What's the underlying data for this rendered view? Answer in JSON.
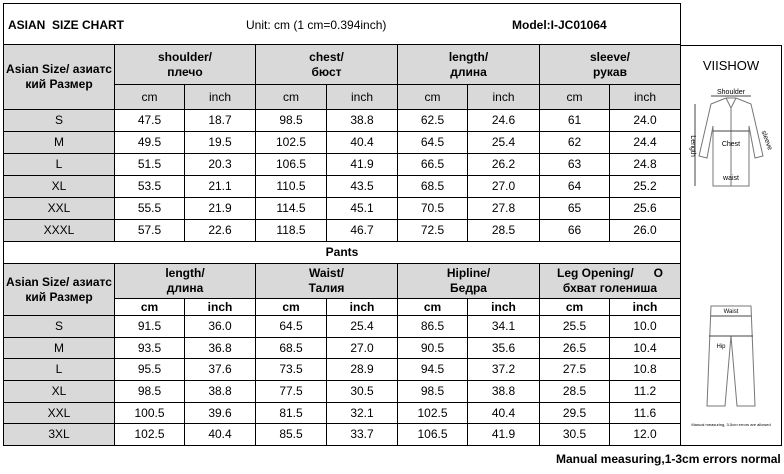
{
  "header": {
    "title": "ASIAN  SIZE CHART",
    "unit": "Unit: cm (1 cm=0.394inch)",
    "model": "Model:I-JC01064"
  },
  "brand": "VIISHOW",
  "tops": {
    "size_header": "Asian Size/ азиатский Размер",
    "columns": [
      {
        "en": "shoulder/",
        "ru": "плечо",
        "units": [
          "cm",
          "inch"
        ]
      },
      {
        "en": "chest/",
        "ru": "бюст",
        "units": [
          "cm",
          "inch"
        ]
      },
      {
        "en": "length/",
        "ru": "длина",
        "units": [
          "cm",
          "inch"
        ]
      },
      {
        "en": "sleeve/",
        "ru": "рукав",
        "units": [
          "cm",
          "inch"
        ]
      }
    ],
    "rows": [
      [
        "S",
        "47.5",
        "18.7",
        "98.5",
        "38.8",
        "62.5",
        "24.6",
        "61",
        "24.0"
      ],
      [
        "M",
        "49.5",
        "19.5",
        "102.5",
        "40.4",
        "64.5",
        "25.4",
        "62",
        "24.4"
      ],
      [
        "L",
        "51.5",
        "20.3",
        "106.5",
        "41.9",
        "66.5",
        "26.2",
        "63",
        "24.8"
      ],
      [
        "XL",
        "53.5",
        "21.1",
        "110.5",
        "43.5",
        "68.5",
        "27.0",
        "64",
        "25.2"
      ],
      [
        "XXL",
        "55.5",
        "21.9",
        "114.5",
        "45.1",
        "70.5",
        "27.8",
        "65",
        "25.6"
      ],
      [
        "XXXL",
        "57.5",
        "22.6",
        "118.5",
        "46.7",
        "72.5",
        "28.5",
        "66",
        "26.0"
      ]
    ]
  },
  "pants": {
    "title": "Pants",
    "size_header": "Asian Size/ азиатский Размер",
    "columns": [
      {
        "en": "length/",
        "ru": "длина",
        "units": [
          "cm",
          "inch"
        ]
      },
      {
        "en": "Waist/",
        "ru": "Талия",
        "units": [
          "cm",
          "inch"
        ]
      },
      {
        "en": "Hipline/",
        "ru": "Бедра",
        "units": [
          "cm",
          "inch"
        ]
      },
      {
        "en": "Leg Opening/      O",
        "ru": "бхват голениша",
        "units": [
          "cm",
          "inch"
        ]
      }
    ],
    "rows": [
      [
        "S",
        "91.5",
        "36.0",
        "64.5",
        "25.4",
        "86.5",
        "34.1",
        "25.5",
        "10.0"
      ],
      [
        "M",
        "93.5",
        "36.8",
        "68.5",
        "27.0",
        "90.5",
        "35.6",
        "26.5",
        "10.4"
      ],
      [
        "L",
        "95.5",
        "37.6",
        "73.5",
        "28.9",
        "94.5",
        "37.2",
        "27.5",
        "10.8"
      ],
      [
        "XL",
        "98.5",
        "38.8",
        "77.5",
        "30.5",
        "98.5",
        "38.8",
        "28.5",
        "11.2"
      ],
      [
        "XXL",
        "100.5",
        "39.6",
        "81.5",
        "32.1",
        "102.5",
        "40.4",
        "29.5",
        "11.6"
      ],
      [
        "3XL",
        "102.5",
        "40.4",
        "85.5",
        "33.7",
        "106.5",
        "41.9",
        "30.5",
        "12.0"
      ]
    ]
  },
  "diagram_labels": {
    "shoulder": "Shoulder",
    "chest": "Chest",
    "length": "Length",
    "sleeve": "sleeve",
    "waist": "waist",
    "pants_waist": "Waist",
    "hip": "Hip",
    "note": "Manual measuring, 3-5cm errors are allowed"
  },
  "footnote": "Manual measuring,1-3cm errors normal"
}
